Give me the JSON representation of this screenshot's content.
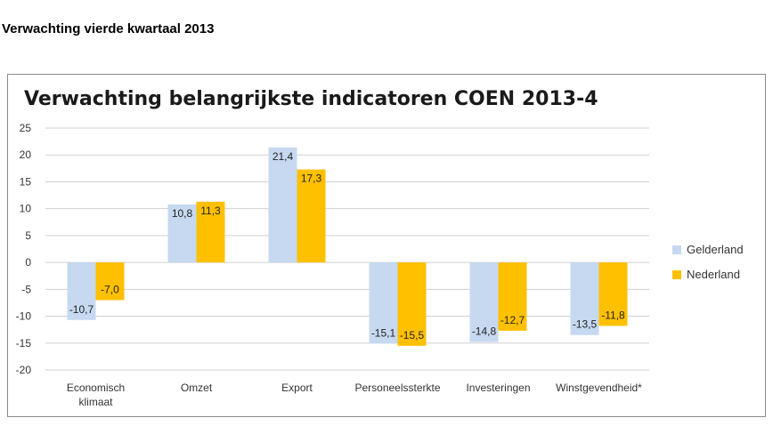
{
  "page": {
    "heading": "Verwachting vierde kwartaal 2013"
  },
  "chart_data": {
    "type": "bar",
    "title": "Verwachting belangrijkste indicatoren COEN 2013-4",
    "categories": [
      [
        "Economisch",
        "klimaat"
      ],
      [
        "Omzet"
      ],
      [
        "Export"
      ],
      [
        "Personeelssterkte"
      ],
      [
        "Investeringen"
      ],
      [
        "Winstgevendheid*"
      ]
    ],
    "series": [
      {
        "name": "Gelderland",
        "color": "#c6d9f0",
        "values": [
          -10.7,
          10.8,
          21.4,
          -15.1,
          -14.8,
          -13.5
        ],
        "labels": [
          "-10,7",
          "10,8",
          "21,4",
          "-15,1",
          "-14,8",
          "-13,5"
        ]
      },
      {
        "name": "Nederland",
        "color": "#ffc000",
        "values": [
          -7.0,
          11.3,
          17.3,
          -15.5,
          -12.7,
          -11.8
        ],
        "labels": [
          "-7,0",
          "11,3",
          "17,3",
          "-15,5",
          "-12,7",
          "-11,8"
        ]
      }
    ],
    "ylim": [
      -20,
      25
    ],
    "yticks": [
      25,
      20,
      15,
      10,
      5,
      0,
      -5,
      -10,
      -15,
      -20
    ],
    "grid": true,
    "legend_position": "right",
    "xlabel": "",
    "ylabel": ""
  }
}
